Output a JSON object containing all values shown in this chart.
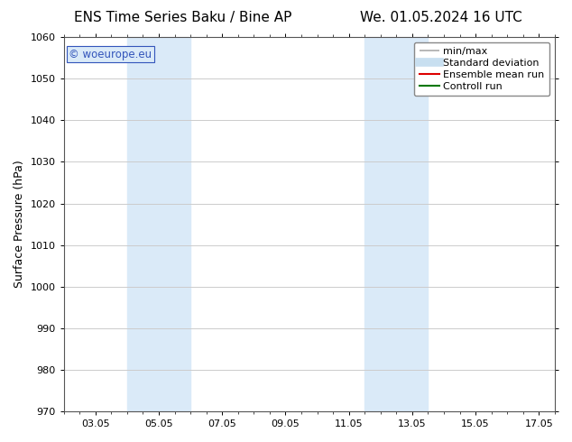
{
  "title_left": "ENS Time Series Baku / Bine AP",
  "title_right": "We. 01.05.2024 16 UTC",
  "ylabel": "Surface Pressure (hPa)",
  "ylim": [
    970,
    1060
  ],
  "yticks": [
    970,
    980,
    990,
    1000,
    1010,
    1020,
    1030,
    1040,
    1050,
    1060
  ],
  "xlim": [
    2.0,
    17.5
  ],
  "xtick_labels": [
    "03.05",
    "05.05",
    "07.05",
    "09.05",
    "11.05",
    "13.05",
    "15.05",
    "17.05"
  ],
  "xtick_positions": [
    3.0,
    5.0,
    7.0,
    9.0,
    11.0,
    13.0,
    15.0,
    17.0
  ],
  "shaded_bands": [
    {
      "x_start": 4.0,
      "x_end": 6.0,
      "color": "#daeaf8"
    },
    {
      "x_start": 11.5,
      "x_end": 13.5,
      "color": "#daeaf8"
    }
  ],
  "watermark_text": "© woeurope.eu",
  "watermark_color": "#3355bb",
  "legend_items": [
    {
      "label": "min/max",
      "color": "#aaaaaa",
      "lw": 1.2
    },
    {
      "label": "Standard deviation",
      "color": "#c8dff0",
      "lw": 7
    },
    {
      "label": "Ensemble mean run",
      "color": "#dd0000",
      "lw": 1.5
    },
    {
      "label": "Controll run",
      "color": "#007700",
      "lw": 1.5
    }
  ],
  "bg_color": "#ffffff",
  "plot_bg_color": "#ffffff",
  "grid_color": "#cccccc",
  "title_fontsize": 11,
  "tick_fontsize": 8,
  "ylabel_fontsize": 9,
  "legend_fontsize": 8
}
